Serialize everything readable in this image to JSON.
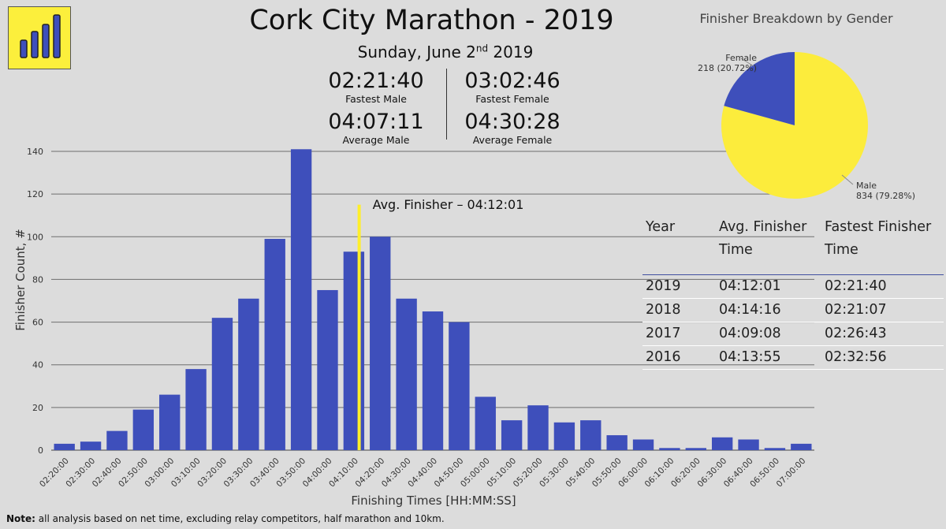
{
  "header": {
    "title": "Cork City Marathon - 2019",
    "subtitle_main": "Sunday, June 2",
    "subtitle_sup": "nd",
    "subtitle_year": " 2019"
  },
  "kpis": {
    "fastest_male": {
      "value": "02:21:40",
      "label": "Fastest Male"
    },
    "average_male": {
      "value": "04:07:11",
      "label": "Average Male"
    },
    "fastest_female": {
      "value": "03:02:46",
      "label": "Fastest Female"
    },
    "average_female": {
      "value": "04:30:28",
      "label": "Average Female"
    }
  },
  "colors": {
    "bar": "#3e4fbb",
    "avg_line": "#ffef2a",
    "male": "#fcec3c",
    "female": "#3e4fbb",
    "logo_bg": "#fcef3c"
  },
  "icons": {
    "logo": "bar-chart-logo-icon"
  },
  "chart_data": [
    {
      "type": "bar",
      "xlabel": "Finishing Times [HH:MM:SS]",
      "ylabel": "Finisher Count, #",
      "ylim": [
        0,
        140
      ],
      "yticks": [
        0,
        20,
        40,
        60,
        80,
        100,
        120,
        140
      ],
      "grid": true,
      "categories": [
        "02:20:00",
        "02:30:00",
        "02:40:00",
        "02:50:00",
        "03:00:00",
        "03:10:00",
        "03:20:00",
        "03:30:00",
        "03:40:00",
        "03:50:00",
        "04:00:00",
        "04:10:00",
        "04:20:00",
        "04:30:00",
        "04:40:00",
        "04:50:00",
        "05:00:00",
        "05:10:00",
        "05:20:00",
        "05:30:00",
        "05:40:00",
        "05:50:00",
        "06:00:00",
        "06:10:00",
        "06:20:00",
        "06:30:00",
        "06:40:00",
        "06:50:00",
        "07:00:00"
      ],
      "values": [
        3,
        4,
        9,
        19,
        26,
        38,
        62,
        71,
        99,
        141,
        75,
        93,
        100,
        71,
        65,
        60,
        25,
        14,
        21,
        13,
        14,
        7,
        5,
        1,
        1,
        6,
        5,
        1,
        3
      ],
      "annotation": {
        "text": "Avg. Finisher – 04:12:01",
        "x": "04:12:01",
        "y_top": 115
      }
    },
    {
      "type": "pie",
      "title": "Finisher Breakdown by Gender",
      "slices": [
        {
          "name": "Female",
          "value": 218,
          "label": "218 (20.72%)"
        },
        {
          "name": "Male",
          "value": 834,
          "label": "834 (79.28%)"
        }
      ]
    },
    {
      "type": "table",
      "columns": [
        "Year",
        "Avg. Finisher Time",
        "Fastest Finisher Time"
      ],
      "rows": [
        [
          "2019",
          "04:12:01",
          "02:21:40"
        ],
        [
          "2018",
          "04:14:16",
          "02:21:07"
        ],
        [
          "2017",
          "04:09:08",
          "02:26:43"
        ],
        [
          "2016",
          "04:13:55",
          "02:32:56"
        ]
      ]
    }
  ],
  "note": {
    "bold": "Note:",
    "text": " all analysis based on net time, excluding relay competitors, half marathon and 10km."
  }
}
